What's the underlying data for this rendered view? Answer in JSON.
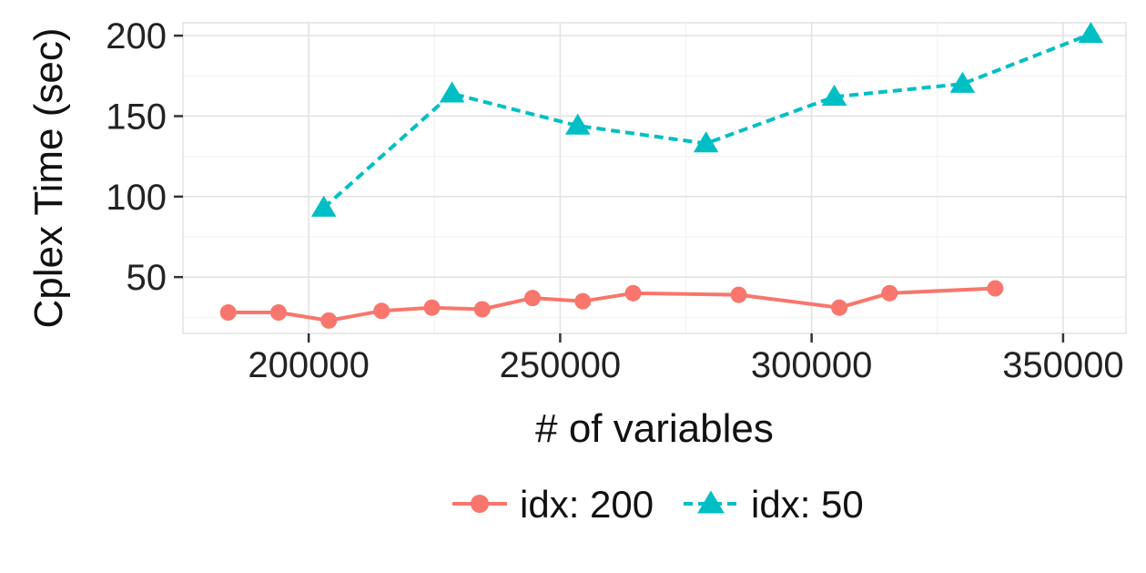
{
  "chart_data": {
    "type": "line",
    "xlabel": "# of variables",
    "ylabel": "Cplex Time (sec)",
    "xlim": [
      175000,
      362500
    ],
    "ylim": [
      15,
      208
    ],
    "x_ticks": [
      200000,
      250000,
      300000,
      350000
    ],
    "y_ticks": [
      50,
      100,
      150,
      200
    ],
    "grid": true,
    "legend_position": "bottom",
    "series": [
      {
        "name": "idx: 200",
        "color": "#F8766D",
        "marker": "circle",
        "line_style": "solid",
        "x": [
          184000,
          194000,
          204000,
          214500,
          224500,
          234500,
          244500,
          254500,
          264500,
          285500,
          305500,
          315500,
          336500
        ],
        "y": [
          28,
          28,
          23,
          29,
          31,
          30,
          37,
          35,
          40,
          39,
          31,
          40,
          43
        ]
      },
      {
        "name": "idx: 50",
        "color": "#00BFC4",
        "marker": "triangle",
        "line_style": "dashed",
        "x": [
          203000,
          228500,
          253500,
          279000,
          304500,
          330000,
          355500
        ],
        "y": [
          93,
          164,
          144,
          133,
          162,
          170,
          201
        ]
      }
    ]
  }
}
